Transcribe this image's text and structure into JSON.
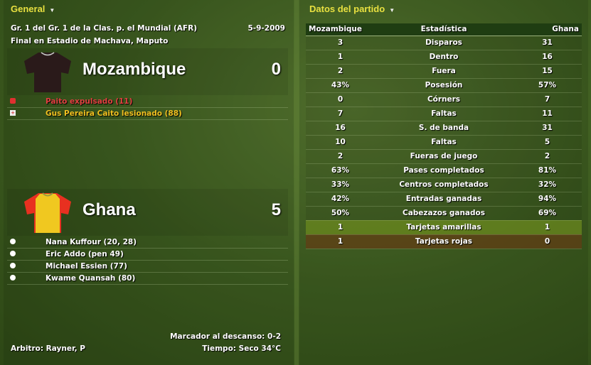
{
  "general": {
    "title": "General",
    "competition": "Gr. 1 del Gr. 1 de la Clas. p. el Mundial (AFR)",
    "date": "5-9-2009",
    "venue": "Final en Estadio de Machava, Maputo",
    "home": {
      "name": "Mozambique",
      "score": "0",
      "events": [
        {
          "icon": "red-card-icon",
          "text": "Paito expulsado (11)",
          "color": "#e04040"
        },
        {
          "icon": "injury-icon",
          "text": "Gus Pereira Caito lesionado (88)",
          "color": "#f0c020"
        }
      ]
    },
    "away": {
      "name": "Ghana",
      "score": "5",
      "events": [
        {
          "icon": "ball-icon",
          "text": "Nana Kuffour (20, 28)"
        },
        {
          "icon": "ball-icon",
          "text": "Eric Addo (pen 49)"
        },
        {
          "icon": "ball-icon",
          "text": "Michael Essien (77)"
        },
        {
          "icon": "ball-icon",
          "text": "Kwame Quansah (80)"
        }
      ]
    },
    "halftime": "Marcador al descanso: 0-2",
    "referee": "Arbitro: Rayner, P",
    "weather": "Tiempo: Seco 34°C"
  },
  "stats": {
    "title": "Datos del partido",
    "headers": [
      "Mozambique",
      "Estadística",
      "Ghana"
    ],
    "rows": [
      [
        "3",
        "Disparos",
        "31"
      ],
      [
        "1",
        "Dentro",
        "16"
      ],
      [
        "2",
        "Fuera",
        "15"
      ],
      [
        "43%",
        "Posesión",
        "57%"
      ],
      [
        "0",
        "Córners",
        "7"
      ],
      [
        "7",
        "Faltas",
        "11"
      ],
      [
        "16",
        "S. de banda",
        "31"
      ],
      [
        "10",
        "Faltas",
        "5"
      ],
      [
        "2",
        "Fueras de juego",
        "2"
      ],
      [
        "63%",
        "Pases completados",
        "81%"
      ],
      [
        "33%",
        "Centros completados",
        "32%"
      ],
      [
        "42%",
        "Entradas ganadas",
        "94%"
      ],
      [
        "50%",
        "Cabezazos ganados",
        "69%"
      ],
      [
        "1",
        "Tarjetas amarillas",
        "1"
      ],
      [
        "1",
        "Tarjetas rojas",
        "0"
      ]
    ]
  },
  "colors": {
    "title": "#e8e040",
    "home_shirt": "#2a1a1a",
    "away_shirt_body": "#f0c820",
    "away_shirt_sleeves": "#e83020"
  }
}
